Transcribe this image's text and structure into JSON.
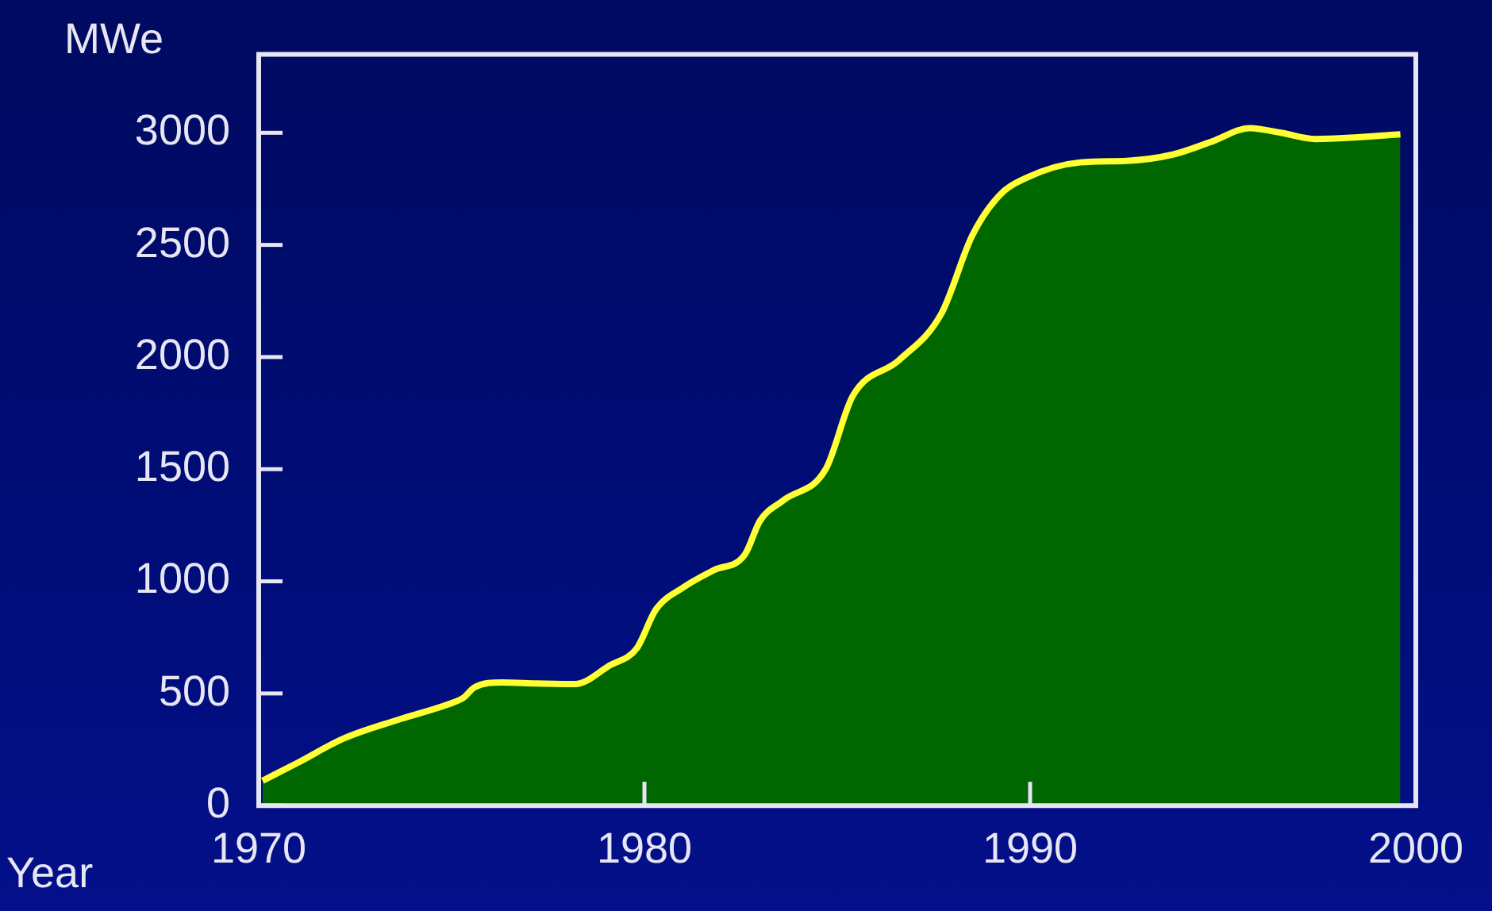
{
  "chart_data": {
    "type": "area",
    "xlabel": "Year",
    "ylabel": "MWe",
    "x": [
      1970.1,
      1971,
      1972.2,
      1973.6,
      1974.9,
      1975.3,
      1975.6,
      1976.3,
      1977.2,
      1978.2,
      1979.1,
      1979.8,
      1980.3,
      1981,
      1981.8,
      1982.6,
      1983,
      1983.6,
      1984.7,
      1985.4,
      1986.6,
      1987.7,
      1988.5,
      1989.2,
      1989.9,
      1991.3,
      1992.5,
      1993.7,
      1994.7,
      1995.7,
      1996.5,
      1997.4,
      1998.5,
      1999.6
    ],
    "series": [
      {
        "color": "#006600",
        "values": [
          111,
          190,
          299,
          382,
          451,
          480,
          528,
          549,
          545,
          542,
          625,
          701,
          875,
          972,
          1050,
          1118,
          1271,
          1361,
          1500,
          1826,
          1986,
          2194,
          2542,
          2720,
          2799,
          2868,
          2875,
          2903,
          2960,
          3021,
          3000,
          2972,
          2980,
          2993
        ]
      }
    ],
    "xlim": [
      1970,
      2000
    ],
    "xticks": [
      1970,
      1980,
      1990,
      2000
    ],
    "ylim": [
      0,
      3350
    ],
    "yticks": [
      0,
      500,
      1000,
      1500,
      2000,
      2500,
      3000
    ],
    "grid": false,
    "legend": false
  }
}
